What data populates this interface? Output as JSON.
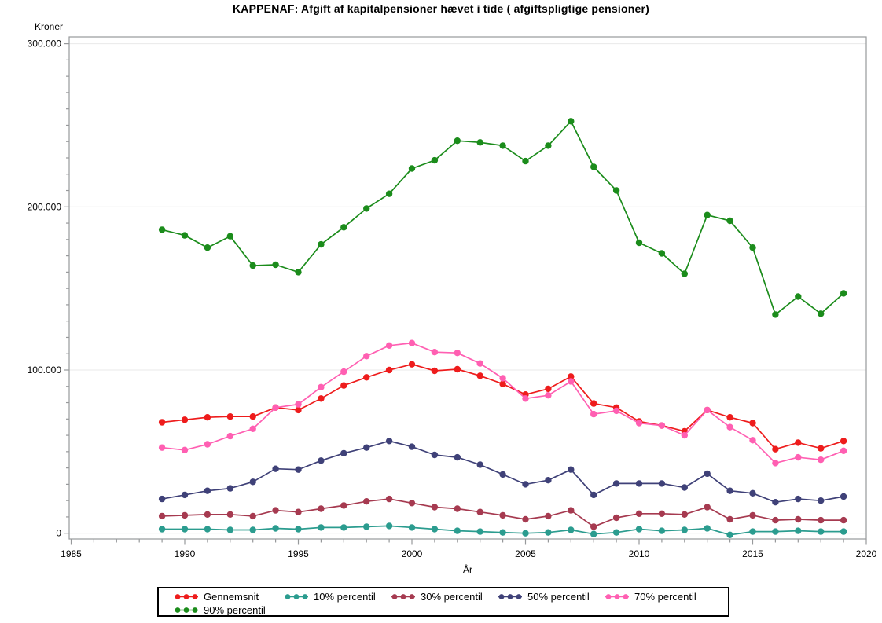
{
  "title": "KAPPENAF: Afgift af kapitalpensioner hævet i tide ( afgiftspligtige pensioner)",
  "chart_data": {
    "type": "line",
    "title": "KAPPENAF: Afgift af kapitalpensioner hævet i tide ( afgiftspligtige pensioner)",
    "xlabel": "År",
    "ylabel": "Kroner",
    "xlim": [
      1985,
      2020
    ],
    "ylim": [
      0,
      300000
    ],
    "grid": "y-major-light",
    "legend_position": "bottom",
    "x_major_ticks": [
      {
        "value": 1985,
        "label": "1985"
      },
      {
        "value": 1990,
        "label": "1990"
      },
      {
        "value": 1995,
        "label": "1995"
      },
      {
        "value": 2000,
        "label": "2000"
      },
      {
        "value": 2005,
        "label": "2005"
      },
      {
        "value": 2010,
        "label": "2010"
      },
      {
        "value": 2015,
        "label": "2015"
      },
      {
        "value": 2020,
        "label": "2020"
      }
    ],
    "x_minor_step": 1,
    "y_major_ticks": [
      {
        "value": 0,
        "label": "0"
      },
      {
        "value": 100000,
        "label": "100.000"
      },
      {
        "value": 200000,
        "label": "200.000"
      },
      {
        "value": 300000,
        "label": "300.000"
      }
    ],
    "y_minor_step": 10000,
    "x": [
      1989,
      1990,
      1991,
      1992,
      1993,
      1994,
      1995,
      1996,
      1997,
      1998,
      1999,
      2000,
      2001,
      2002,
      2003,
      2004,
      2005,
      2006,
      2007,
      2008,
      2009,
      2010,
      2011,
      2012,
      2013,
      2014,
      2015,
      2016,
      2017,
      2018,
      2019
    ],
    "series": [
      {
        "name": "Gennemsnit",
        "color": "#ee1c1c",
        "values": [
          68000,
          69500,
          71000,
          71500,
          71500,
          77000,
          75500,
          82500,
          90500,
          95500,
          100000,
          103500,
          99500,
          100500,
          96500,
          91500,
          85000,
          88500,
          96000,
          79500,
          77000,
          68500,
          66000,
          62500,
          75500,
          71000,
          67500,
          51500,
          55500,
          52000,
          56500
        ]
      },
      {
        "name": "10% percentil",
        "color": "#2b9c8f",
        "values": [
          2500,
          2500,
          2500,
          2000,
          2000,
          3000,
          2500,
          3500,
          3500,
          4000,
          4500,
          3500,
          2500,
          1500,
          1000,
          500,
          0,
          500,
          2000,
          -500,
          500,
          2500,
          1500,
          2000,
          3000,
          -1000,
          1000,
          1000,
          1500,
          1000,
          1000
        ]
      },
      {
        "name": "30% percentil",
        "color": "#a63a50",
        "values": [
          10500,
          11000,
          11500,
          11500,
          10500,
          14000,
          13000,
          15000,
          17000,
          19500,
          21000,
          18500,
          16000,
          15000,
          13000,
          11000,
          8500,
          10500,
          14000,
          4000,
          9500,
          12000,
          12000,
          11500,
          16000,
          8500,
          11000,
          8000,
          8500,
          8000,
          8000
        ]
      },
      {
        "name": "50% percentil",
        "color": "#3f4178",
        "values": [
          21000,
          23500,
          26000,
          27500,
          31500,
          39500,
          39000,
          44500,
          49000,
          52500,
          56500,
          53000,
          48000,
          46500,
          42000,
          36000,
          30000,
          32500,
          39000,
          23500,
          30500,
          30500,
          30500,
          28000,
          36500,
          26000,
          24500,
          19000,
          21000,
          20000,
          22500
        ]
      },
      {
        "name": "70% percentil",
        "color": "#ff5fb2",
        "values": [
          52500,
          51000,
          54500,
          59500,
          64000,
          77000,
          79000,
          89500,
          99000,
          108500,
          115000,
          116500,
          111000,
          110500,
          104000,
          95000,
          82500,
          84500,
          93000,
          73000,
          75000,
          67500,
          66000,
          60000,
          75500,
          65000,
          57000,
          43000,
          46500,
          45000,
          50500
        ]
      },
      {
        "name": "90% percentil",
        "color": "#1b8c1b",
        "values": [
          186000,
          182500,
          175000,
          182000,
          164000,
          164500,
          160000,
          177000,
          187500,
          199000,
          208000,
          223500,
          228500,
          240500,
          239500,
          237500,
          228000,
          237500,
          252500,
          224500,
          210000,
          178000,
          171500,
          159000,
          195000,
          191500,
          175000,
          134000,
          145000,
          134500,
          147000
        ]
      }
    ]
  }
}
